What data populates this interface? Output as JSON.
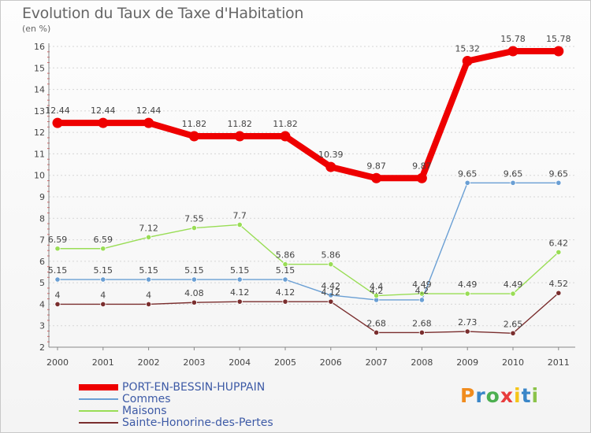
{
  "header": {
    "title": "Evolution du Taux de Taxe d'Habitation",
    "unit": "(en %)"
  },
  "logo": {
    "text": "Proxiti"
  },
  "chart_data": {
    "type": "line",
    "title": "Evolution du Taux de Taxe d'Habitation",
    "subtitle": "(en %)",
    "x": [
      "2000",
      "2001",
      "2002",
      "2003",
      "2004",
      "2005",
      "2006",
      "2007",
      "2008",
      "2009",
      "2010",
      "2011"
    ],
    "ylim": [
      2,
      16
    ],
    "yticks": [
      2,
      3,
      4,
      5,
      6,
      7,
      8,
      9,
      10,
      11,
      12,
      13,
      14,
      15,
      16
    ],
    "grid": "horizontal dotted",
    "legend_position": "bottom-left",
    "series": [
      {
        "name": "PORT-EN-BESSIN-HUPPAIN",
        "color": "#ee0000",
        "values": [
          12.44,
          12.44,
          12.44,
          11.82,
          11.82,
          11.82,
          10.39,
          9.87,
          9.87,
          15.32,
          15.78,
          15.78
        ],
        "labels": [
          "12.44",
          "12.44",
          "12.44",
          "11.82",
          "11.82",
          "11.82",
          "10.39",
          "9.87",
          "9.87",
          "15.32",
          "15.78",
          "15.78"
        ]
      },
      {
        "name": "Commes",
        "color": "#6a9fd4",
        "values": [
          5.15,
          5.15,
          5.15,
          5.15,
          5.15,
          5.15,
          4.42,
          4.2,
          4.2,
          9.65,
          9.65,
          9.65
        ],
        "labels": [
          "5.15",
          "5.15",
          "5.15",
          "5.15",
          "5.15",
          "5.15",
          "4.42",
          "4.2",
          "4.2",
          "9.65",
          "9.65",
          "9.65"
        ]
      },
      {
        "name": "Maisons",
        "color": "#99dd55",
        "values": [
          6.59,
          6.59,
          7.12,
          7.55,
          7.7,
          5.86,
          5.86,
          4.4,
          4.49,
          4.49,
          4.49,
          6.42
        ],
        "labels": [
          "6.59",
          "6.59",
          "7.12",
          "7.55",
          "7.7",
          "5.86",
          "5.86",
          "4.4",
          "4.49",
          "4.49",
          "4.49",
          "6.42"
        ]
      },
      {
        "name": "Sainte-Honorine-des-Pertes",
        "color": "#7a2e2e",
        "values": [
          4,
          4,
          4,
          4.08,
          4.12,
          4.12,
          4.12,
          2.68,
          2.68,
          2.73,
          2.65,
          4.52
        ],
        "labels": [
          "4",
          "4",
          "4",
          "4.08",
          "4.12",
          "4.12",
          "4.12",
          "2.68",
          "2.68",
          "2.73",
          "2.65",
          "4.52"
        ]
      }
    ]
  }
}
